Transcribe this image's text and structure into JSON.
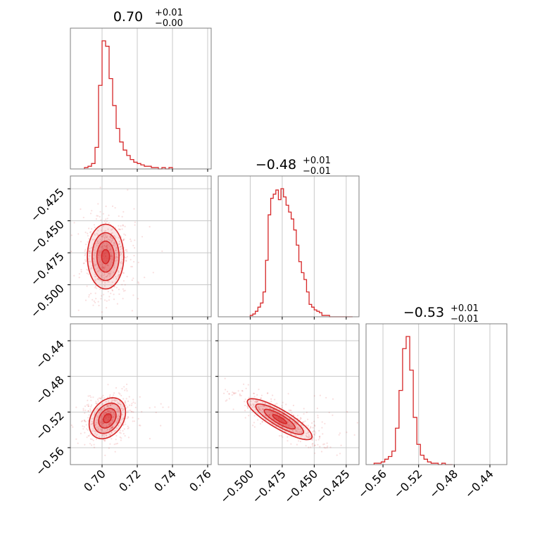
{
  "chart_data": {
    "type": "corner",
    "color": "#d62728",
    "grid": true,
    "parameters": [
      {
        "title": "0.70",
        "err_plus": "+0.01",
        "err_minus": "−0.00",
        "range": [
          0.682,
          0.762
        ],
        "ticks": [
          0.7,
          0.72,
          0.74,
          0.76
        ],
        "tick_labels": [
          "0.70",
          "0.72",
          "0.74",
          "0.76"
        ],
        "hist": {
          "bins": [
            0.69,
            0.692,
            0.694,
            0.696,
            0.698,
            0.7,
            0.702,
            0.704,
            0.706,
            0.708,
            0.71,
            0.712,
            0.714,
            0.716,
            0.718,
            0.72,
            0.722,
            0.724,
            0.726,
            0.728,
            0.73,
            0.732,
            0.734,
            0.736,
            0.738,
            0.74
          ],
          "counts": [
            1,
            2,
            4,
            16,
            62,
            95,
            91,
            67,
            47,
            30,
            20,
            14,
            10,
            7,
            5,
            4,
            3,
            2,
            2,
            1,
            1,
            0,
            1,
            0,
            1
          ]
        }
      },
      {
        "title": "−0.48",
        "err_plus": "+0.01",
        "err_minus": "−0.01",
        "range": [
          -0.525,
          -0.415
        ],
        "ticks": [
          -0.5,
          -0.475,
          -0.45,
          -0.425
        ],
        "tick_labels": [
          "−0.500",
          "−0.475",
          "−0.450",
          "−0.425"
        ],
        "hist": {
          "bins": [
            -0.5,
            -0.498,
            -0.496,
            -0.494,
            -0.492,
            -0.49,
            -0.488,
            -0.486,
            -0.484,
            -0.482,
            -0.48,
            -0.478,
            -0.476,
            -0.474,
            -0.472,
            -0.47,
            -0.468,
            -0.466,
            -0.464,
            -0.462,
            -0.46,
            -0.458,
            -0.456,
            -0.454,
            -0.452,
            -0.45,
            -0.448,
            -0.446,
            -0.444,
            -0.442,
            -0.44,
            -0.438,
            -0.436,
            -0.434,
            -0.432,
            -0.43,
            -0.428,
            -0.426,
            -0.424,
            -0.422,
            -0.42
          ],
          "counts": [
            1,
            2,
            4,
            7,
            10,
            18,
            41,
            74,
            86,
            89,
            92,
            85,
            93,
            87,
            81,
            76,
            71,
            63,
            52,
            40,
            32,
            27,
            18,
            9,
            7,
            5,
            4,
            3,
            1,
            1,
            1,
            0,
            0,
            0,
            0,
            0,
            0,
            0,
            0,
            0
          ]
        }
      },
      {
        "title": "−0.53",
        "err_plus": "+0.01",
        "err_minus": "−0.01",
        "range": [
          -0.579,
          -0.421
        ],
        "ticks": [
          -0.56,
          -0.52,
          -0.48,
          -0.44
        ],
        "tick_labels": [
          "−0.56",
          "−0.52",
          "−0.48",
          "−0.44"
        ],
        "hist": {
          "bins": [
            -0.57,
            -0.566,
            -0.562,
            -0.558,
            -0.554,
            -0.55,
            -0.546,
            -0.542,
            -0.538,
            -0.534,
            -0.53,
            -0.526,
            -0.522,
            -0.518,
            -0.514,
            -0.51,
            -0.506,
            -0.502,
            -0.498,
            -0.494,
            -0.49,
            -0.486,
            -0.482
          ],
          "counts": [
            1,
            1,
            2,
            4,
            6,
            10,
            27,
            55,
            86,
            95,
            70,
            35,
            15,
            7,
            4,
            2,
            1,
            1,
            0,
            1,
            0,
            0
          ]
        }
      }
    ],
    "correlations": {
      "1_0": {
        "center": [
          0.702,
          -0.478
        ],
        "sigma": [
          0.0045,
          0.011
        ],
        "rho": 0.0
      },
      "2_0": {
        "center": [
          0.703,
          -0.527
        ],
        "sigma": [
          0.0045,
          0.01
        ],
        "rho": 0.3
      },
      "2_1": {
        "center": [
          -0.477,
          -0.528
        ],
        "sigma": [
          0.011,
          0.01
        ],
        "rho": -0.85
      }
    }
  }
}
